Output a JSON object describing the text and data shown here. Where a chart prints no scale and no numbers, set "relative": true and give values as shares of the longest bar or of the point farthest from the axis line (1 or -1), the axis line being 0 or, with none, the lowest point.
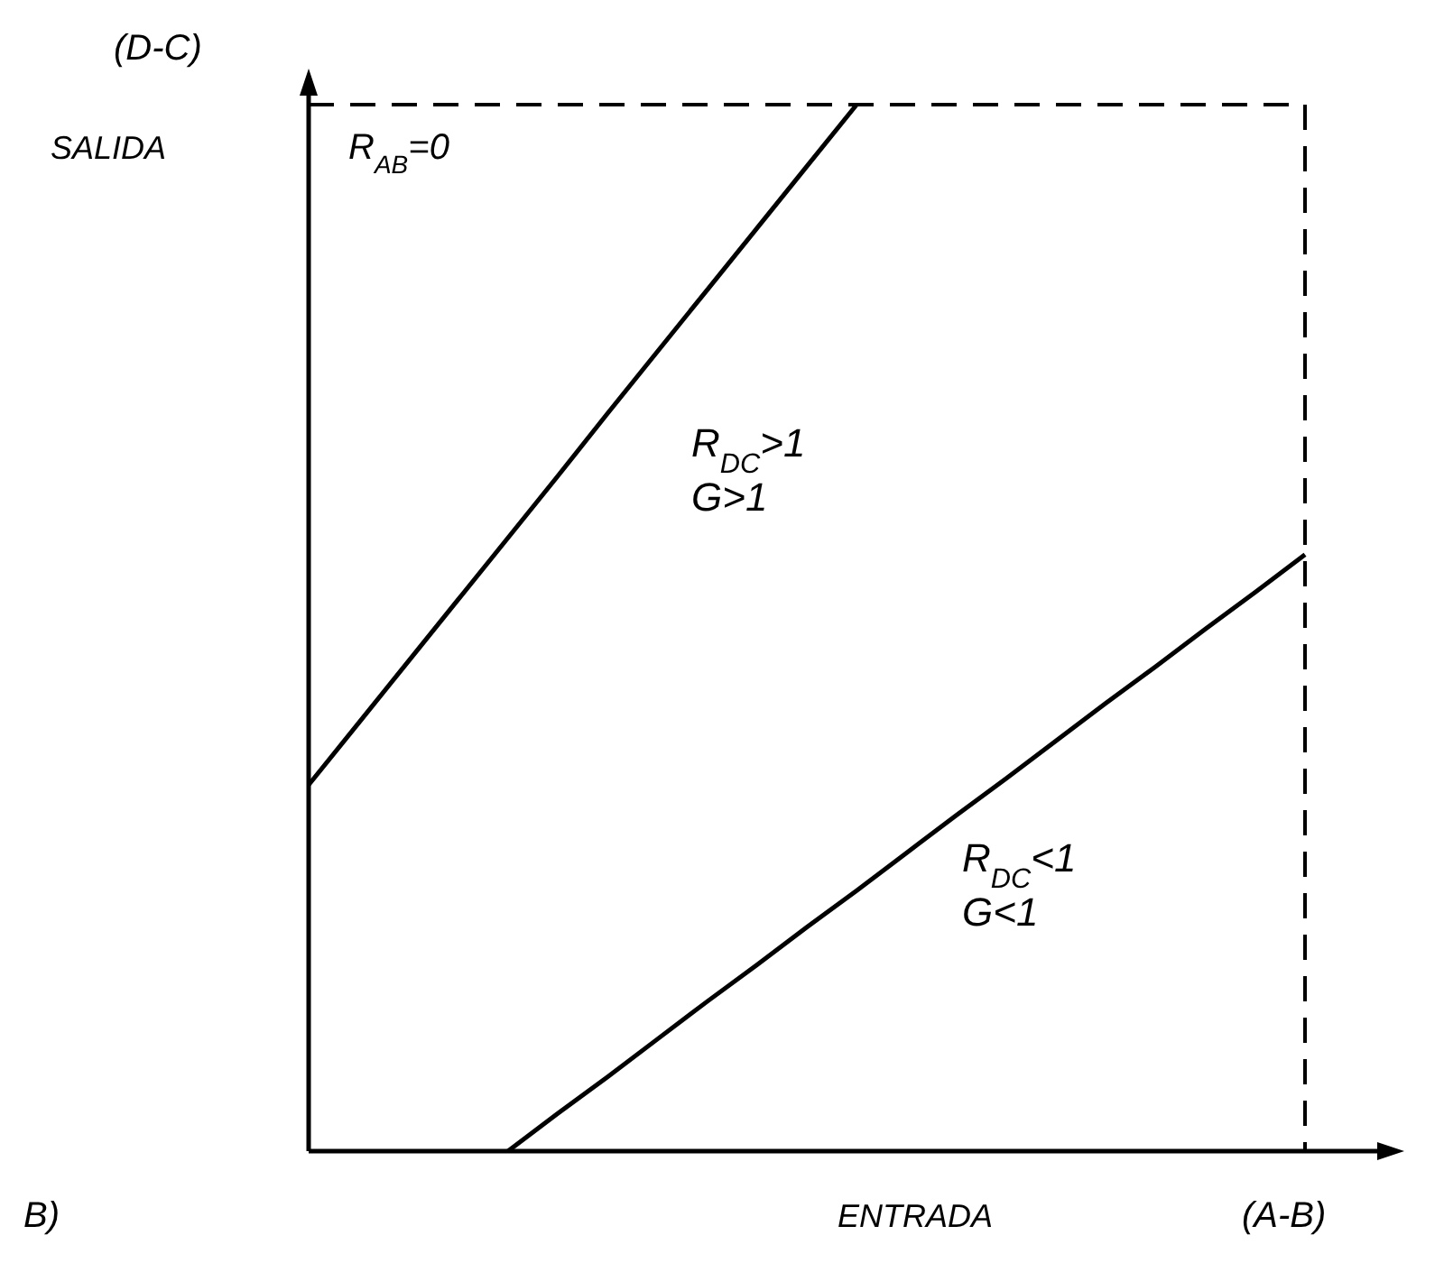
{
  "chart_data": {
    "type": "line",
    "relative": true,
    "ylabel": "SALIDA",
    "xlabel": "ENTRADA",
    "line_style": "solid",
    "categories": [
      null,
      null,
      null,
      null,
      null,
      null,
      null,
      null,
      null,
      null,
      null,
      null,
      null,
      null,
      null,
      null,
      null,
      null,
      null,
      null,
      null
    ],
    "series": [
      {
        "color": "#000000",
        "values": [
          0.35,
          0.409,
          0.468,
          0.527,
          0.586,
          0.645,
          0.705,
          0.764,
          0.823,
          0.882,
          0.941,
          1,
          null,
          null,
          null,
          null,
          null,
          null,
          null,
          null,
          null
        ]
      },
      {
        "color": "#000000",
        "values": [
          null,
          null,
          null,
          null,
          0,
          0.036,
          0.071,
          0.107,
          0.143,
          0.178,
          0.214,
          0.249,
          0.285,
          0.321,
          0.356,
          0.392,
          0.428,
          0.463,
          0.499,
          0.534,
          0.57
        ]
      }
    ],
    "annotations": [
      "(D-C)",
      "R$_{AB}$=0",
      "R$_{DC}$>1",
      "G>1",
      "R$_{DC}$<1",
      "G<1",
      "(A-B)",
      "B)"
    ]
  }
}
